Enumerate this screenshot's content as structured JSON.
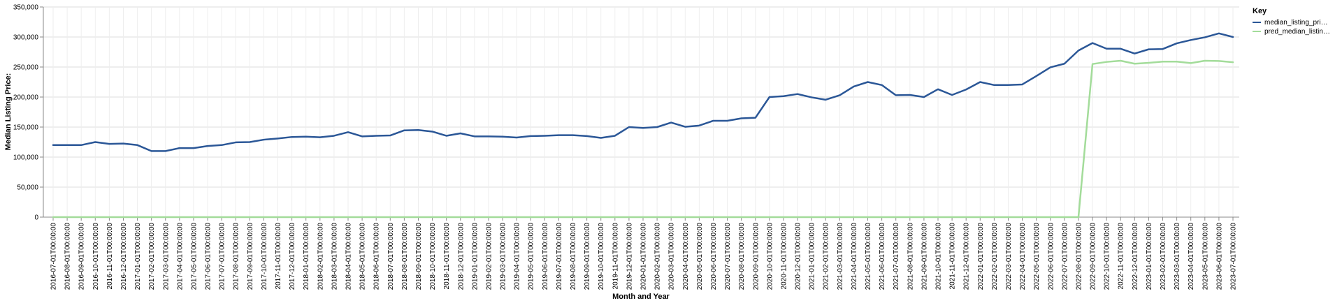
{
  "chart_data": {
    "type": "line",
    "xlabel": "Month and Year",
    "ylabel": "Median Listing Price:",
    "ylim": [
      0,
      350000
    ],
    "y_ticks": [
      "0",
      "50,000",
      "100,000",
      "150,000",
      "200,000",
      "250,000",
      "300,000",
      "350,000"
    ],
    "y_tick_values": [
      0,
      50000,
      100000,
      150000,
      200000,
      250000,
      300000,
      350000
    ],
    "grid": true,
    "legend": {
      "title": "Key",
      "placement": "top-right",
      "entries": [
        "median_listing_pri…",
        "pred_median_listin…"
      ]
    },
    "colors": {
      "median_listing_price": "#2b5797",
      "pred_median_listing_price": "#a3dc9a"
    },
    "x": [
      "2016-07-01T00:00:00",
      "2016-08-01T00:00:00",
      "2016-09-01T00:00:00",
      "2016-10-01T00:00:00",
      "2016-11-01T00:00:00",
      "2016-12-01T00:00:00",
      "2017-01-01T00:00:00",
      "2017-02-01T00:00:00",
      "2017-03-01T00:00:00",
      "2017-04-01T00:00:00",
      "2017-05-01T00:00:00",
      "2017-06-01T00:00:00",
      "2017-07-01T00:00:00",
      "2017-08-01T00:00:00",
      "2017-09-01T00:00:00",
      "2017-10-01T00:00:00",
      "2017-11-01T00:00:00",
      "2017-12-01T00:00:00",
      "2018-01-01T00:00:00",
      "2018-02-01T00:00:00",
      "2018-03-01T00:00:00",
      "2018-04-01T00:00:00",
      "2018-05-01T00:00:00",
      "2018-06-01T00:00:00",
      "2018-07-01T00:00:00",
      "2018-08-01T00:00:00",
      "2018-09-01T00:00:00",
      "2018-10-01T00:00:00",
      "2018-11-01T00:00:00",
      "2018-12-01T00:00:00",
      "2019-01-01T00:00:00",
      "2019-02-01T00:00:00",
      "2019-03-01T00:00:00",
      "2019-04-01T00:00:00",
      "2019-05-01T00:00:00",
      "2019-06-01T00:00:00",
      "2019-07-01T00:00:00",
      "2019-08-01T00:00:00",
      "2019-09-01T00:00:00",
      "2019-10-01T00:00:00",
      "2019-11-01T00:00:00",
      "2019-12-01T00:00:00",
      "2020-01-01T00:00:00",
      "2020-02-01T00:00:00",
      "2020-03-01T00:00:00",
      "2020-04-01T00:00:00",
      "2020-05-01T00:00:00",
      "2020-06-01T00:00:00",
      "2020-07-01T00:00:00",
      "2020-08-01T00:00:00",
      "2020-09-01T00:00:00",
      "2020-10-01T00:00:00",
      "2020-11-01T00:00:00",
      "2020-12-01T00:00:00",
      "2021-01-01T00:00:00",
      "2021-02-01T00:00:00",
      "2021-03-01T00:00:00",
      "2021-04-01T00:00:00",
      "2021-05-01T00:00:00",
      "2021-06-01T00:00:00",
      "2021-07-01T00:00:00",
      "2021-08-01T00:00:00",
      "2021-09-01T00:00:00",
      "2021-10-01T00:00:00",
      "2021-11-01T00:00:00",
      "2021-12-01T00:00:00",
      "2022-01-01T00:00:00",
      "2022-02-01T00:00:00",
      "2022-03-01T00:00:00",
      "2022-04-01T00:00:00",
      "2022-05-01T00:00:00",
      "2022-06-01T00:00:00",
      "2022-07-01T00:00:00",
      "2022-08-01T00:00:00",
      "2022-09-01T00:00:00",
      "2022-10-01T00:00:00",
      "2022-11-01T00:00:00",
      "2022-12-01T00:00:00",
      "2023-01-01T00:00:00",
      "2023-02-01T00:00:00",
      "2023-03-01T00:00:00",
      "2023-04-01T00:00:00",
      "2023-05-01T00:00:00",
      "2023-06-01T00:00:00",
      "2023-07-01T00:00:00"
    ],
    "series": [
      {
        "name": "median_listing_pri…",
        "values": [
          120000,
          120000,
          120000,
          125000,
          122000,
          122500,
          120000,
          110000,
          110000,
          115000,
          115000,
          118500,
          120000,
          124500,
          125000,
          129000,
          131000,
          133500,
          134000,
          133000,
          135500,
          141500,
          134500,
          135500,
          136000,
          144500,
          145000,
          142500,
          135500,
          139500,
          134500,
          134500,
          134000,
          132500,
          135000,
          135500,
          136500,
          136500,
          135000,
          132000,
          135500,
          150000,
          148500,
          150000,
          157500,
          150500,
          152500,
          160500,
          160500,
          164500,
          165500,
          200000,
          201500,
          205000,
          199500,
          195500,
          203000,
          217500,
          225000,
          220000,
          203000,
          203500,
          200000,
          213000,
          203500,
          212500,
          225000,
          220000,
          220000,
          221000,
          235000,
          249500,
          255500,
          277500,
          290000,
          280500,
          280500,
          272500,
          279500,
          280000,
          289500,
          295000,
          299500,
          306000,
          300000
        ]
      },
      {
        "name": "pred_median_listin…",
        "values": [
          0,
          0,
          0,
          0,
          0,
          0,
          0,
          0,
          0,
          0,
          0,
          0,
          0,
          0,
          0,
          0,
          0,
          0,
          0,
          0,
          0,
          0,
          0,
          0,
          0,
          0,
          0,
          0,
          0,
          0,
          0,
          0,
          0,
          0,
          0,
          0,
          0,
          0,
          0,
          0,
          0,
          0,
          0,
          0,
          0,
          0,
          0,
          0,
          0,
          0,
          0,
          0,
          0,
          0,
          0,
          0,
          0,
          0,
          0,
          0,
          0,
          0,
          0,
          0,
          0,
          0,
          0,
          0,
          0,
          0,
          0,
          0,
          0,
          0,
          255000,
          258500,
          260500,
          255500,
          257000,
          259000,
          259000,
          256500,
          260500,
          260000,
          258000
        ]
      }
    ]
  }
}
